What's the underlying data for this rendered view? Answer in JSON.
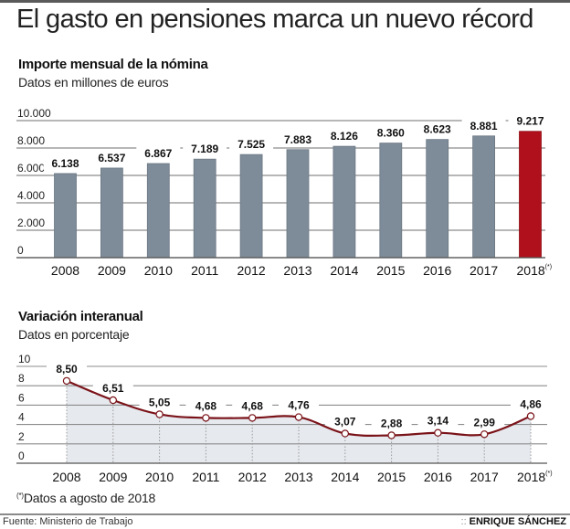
{
  "title": "El gasto en pensiones marca un nuevo récord",
  "chart_data": [
    {
      "type": "bar",
      "title": "Importe mensual de la nómina",
      "subtitle": "Datos en millones de euros",
      "xlabel": "",
      "ylabel": "",
      "categories": [
        "2008",
        "2009",
        "2010",
        "2011",
        "2012",
        "2013",
        "2014",
        "2015",
        "2016",
        "2017",
        "2018"
      ],
      "category_suffix_last": "(*)",
      "values": [
        6138,
        6537,
        6867,
        7189,
        7525,
        7883,
        8126,
        8360,
        8623,
        8881,
        9217
      ],
      "value_labels": [
        "6.138",
        "6.537",
        "6.867",
        "7.189",
        "7.525",
        "7.883",
        "8.126",
        "8.360",
        "8.623",
        "8.881",
        "9.217"
      ],
      "ylim": [
        0,
        10000
      ],
      "yticks": [
        0,
        2000,
        4000,
        6000,
        8000,
        10000
      ],
      "ytick_labels": [
        "0",
        "2.000",
        "4.000",
        "6.000",
        "8.000",
        "10.000"
      ],
      "grid": true,
      "colors": {
        "bar": "#7e8b98",
        "highlight": "#b0101b",
        "grid": "#8c8c8c"
      },
      "highlight_index": 10
    },
    {
      "type": "area",
      "title": "Variación interanual",
      "subtitle": "Datos en porcentaje",
      "xlabel": "",
      "ylabel": "",
      "categories": [
        "2008",
        "2009",
        "2010",
        "2011",
        "2012",
        "2013",
        "2014",
        "2015",
        "2016",
        "2017",
        "2018"
      ],
      "category_suffix_last": "(*)",
      "values": [
        8.5,
        6.51,
        5.05,
        4.68,
        4.68,
        4.76,
        3.07,
        2.88,
        3.14,
        2.99,
        4.86
      ],
      "value_labels": [
        "8,50",
        "6,51",
        "5,05",
        "4,68",
        "4,68",
        "4,76",
        "3,07",
        "2,88",
        "3,14",
        "2,99",
        "4,86"
      ],
      "ylim": [
        0,
        10
      ],
      "yticks": [
        0,
        2,
        4,
        6,
        8,
        10
      ],
      "ytick_labels": [
        "0",
        "2",
        "4",
        "6",
        "8",
        "10"
      ],
      "grid": true,
      "colors": {
        "line": "#7a1319",
        "fill": "#e6e9ee",
        "grid": "#8c8c8c",
        "marker_fill": "#ffffff"
      }
    }
  ],
  "note": {
    "marker": "(*)",
    "text": "Datos a agosto de 2018"
  },
  "footer": {
    "source": "Fuente: Ministerio de Trabajo",
    "credit_sep": "::",
    "credit": "ENRIQUE SÁNCHEZ"
  }
}
